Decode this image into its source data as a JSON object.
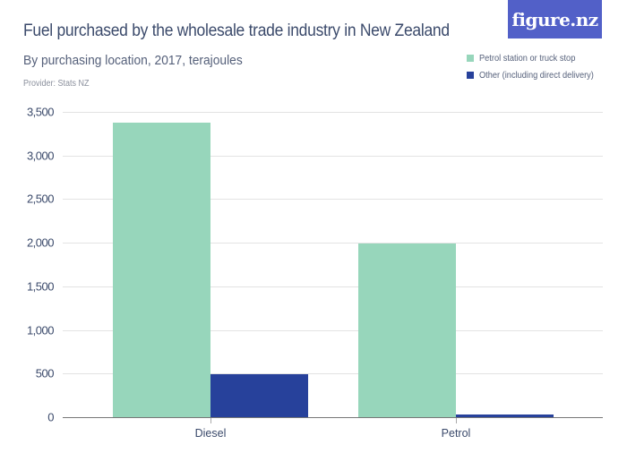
{
  "header": {
    "title": "Fuel purchased by the wholesale trade industry in New Zealand",
    "subtitle": "By purchasing location, 2017, terajoules",
    "provider": "Provider: Stats NZ",
    "logo": "figure.nz"
  },
  "colors": {
    "series1": "#97d6bb",
    "series2": "#27419b",
    "logo_bg": "#5260c8"
  },
  "legend": [
    {
      "label": "Petrol station or truck stop",
      "color": "#97d6bb"
    },
    {
      "label": "Other (including direct delivery)",
      "color": "#27419b"
    }
  ],
  "yticks": [
    "0",
    "500",
    "1,000",
    "1,500",
    "2,000",
    "2,500",
    "3,000",
    "3,500"
  ],
  "chart_data": {
    "type": "bar",
    "title": "Fuel purchased by the wholesale trade industry in New Zealand",
    "subtitle": "By purchasing location, 2017, terajoules",
    "categories": [
      "Diesel",
      "Petrol"
    ],
    "series": [
      {
        "name": "Petrol station or truck stop",
        "values": [
          3380,
          1990
        ]
      },
      {
        "name": "Other (including direct delivery)",
        "values": [
          490,
          27
        ]
      }
    ],
    "xlabel": "",
    "ylabel": "",
    "ylim": [
      0,
      3500
    ],
    "yticks": [
      0,
      500,
      1000,
      1500,
      2000,
      2500,
      3000,
      3500
    ],
    "grid": true,
    "legend_position": "top-right"
  }
}
